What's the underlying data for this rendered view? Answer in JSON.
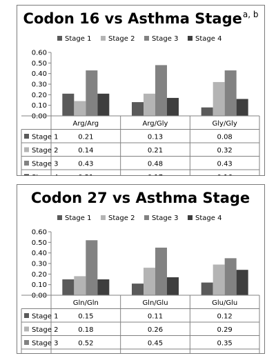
{
  "charts": [
    {
      "title": "Codon 16 vs Asthma Stage",
      "title_superscript": "a, b"
    },
    {
      "title": "Codon 27 vs Asthma Stage",
      "title_superscript": ""
    }
  ],
  "chart_data": [
    {
      "type": "bar",
      "title": "Codon 16 vs Asthma Stage",
      "categories": [
        "Arg/Arg",
        "Arg/Gly",
        "Gly/Gly"
      ],
      "series": [
        {
          "name": "Stage 1",
          "values": [
            0.21,
            0.13,
            0.08
          ],
          "color": "#5a5a5a"
        },
        {
          "name": "Stage 2",
          "values": [
            0.14,
            0.21,
            0.32
          ],
          "color": "#b4b4b4"
        },
        {
          "name": "Stage 3",
          "values": [
            0.43,
            0.48,
            0.43
          ],
          "color": "#828282"
        },
        {
          "name": "Stage 4",
          "values": [
            0.21,
            0.17,
            0.16
          ],
          "color": "#3e3e3e"
        }
      ],
      "ylim": [
        0,
        0.6
      ],
      "yticks": [
        "0.00",
        "0.10",
        "0.20",
        "0.30",
        "0.40",
        "0.50",
        "0.60"
      ],
      "legend": "top",
      "data_table": true
    },
    {
      "type": "bar",
      "title": "Codon 27 vs Asthma Stage",
      "categories": [
        "Gln/Gln",
        "Gln/Glu",
        "Glu/Glu"
      ],
      "series": [
        {
          "name": "Stage 1",
          "values": [
            0.15,
            0.11,
            0.12
          ],
          "color": "#5a5a5a"
        },
        {
          "name": "Stage 2",
          "values": [
            0.18,
            0.26,
            0.29
          ],
          "color": "#b4b4b4"
        },
        {
          "name": "Stage 3",
          "values": [
            0.52,
            0.45,
            0.35
          ],
          "color": "#828282"
        },
        {
          "name": "Stage 4",
          "values": [
            0.15,
            0.17,
            0.24
          ],
          "color": "#3e3e3e"
        }
      ],
      "ylim": [
        0,
        0.6
      ],
      "yticks": [
        "0.00",
        "0.10",
        "0.20",
        "0.30",
        "0.40",
        "0.50",
        "0.60"
      ],
      "legend": "top",
      "data_table": true
    }
  ]
}
